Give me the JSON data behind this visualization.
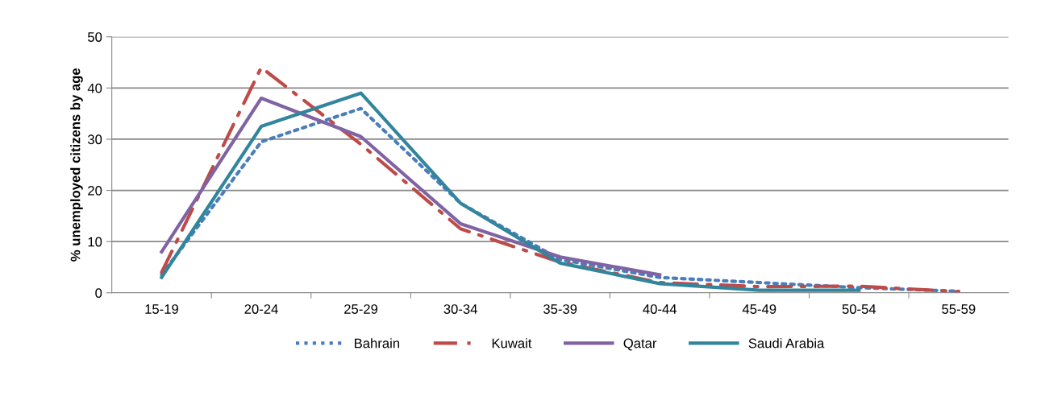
{
  "chart_data": {
    "type": "line",
    "ylabel": "% unemployed citizens by age",
    "categories": [
      "15-19",
      "20-24",
      "25-29",
      "30-34",
      "35-39",
      "40-44",
      "45-49",
      "50-54",
      "55-59"
    ],
    "series": [
      {
        "name": "Bahrain",
        "color": "#4a7ebb",
        "line_style": "dotted",
        "values": [
          3.5,
          29.5,
          36,
          17.5,
          6.5,
          3,
          2,
          1,
          0.3
        ]
      },
      {
        "name": "Kuwait",
        "color": "#be4b48",
        "line_style": "dashed",
        "values": [
          4,
          44,
          29,
          12.5,
          6,
          2,
          1.2,
          1.3,
          0.2
        ]
      },
      {
        "name": "Qatar",
        "color": "#7f63a2",
        "line_style": "solid",
        "values": [
          8,
          38,
          30.5,
          13.5,
          7,
          3.5,
          null,
          null,
          null
        ]
      },
      {
        "name": "Saudi Arabia",
        "color": "#31859c",
        "line_style": "solid",
        "values": [
          3,
          32.5,
          39,
          17.5,
          5.8,
          1.8,
          0.5,
          0.5,
          null
        ]
      }
    ],
    "ylim": [
      0,
      50
    ],
    "yticks": [
      0,
      10,
      20,
      30,
      40,
      50
    ],
    "grid": "y",
    "legend": "bottom",
    "marker": "none"
  }
}
